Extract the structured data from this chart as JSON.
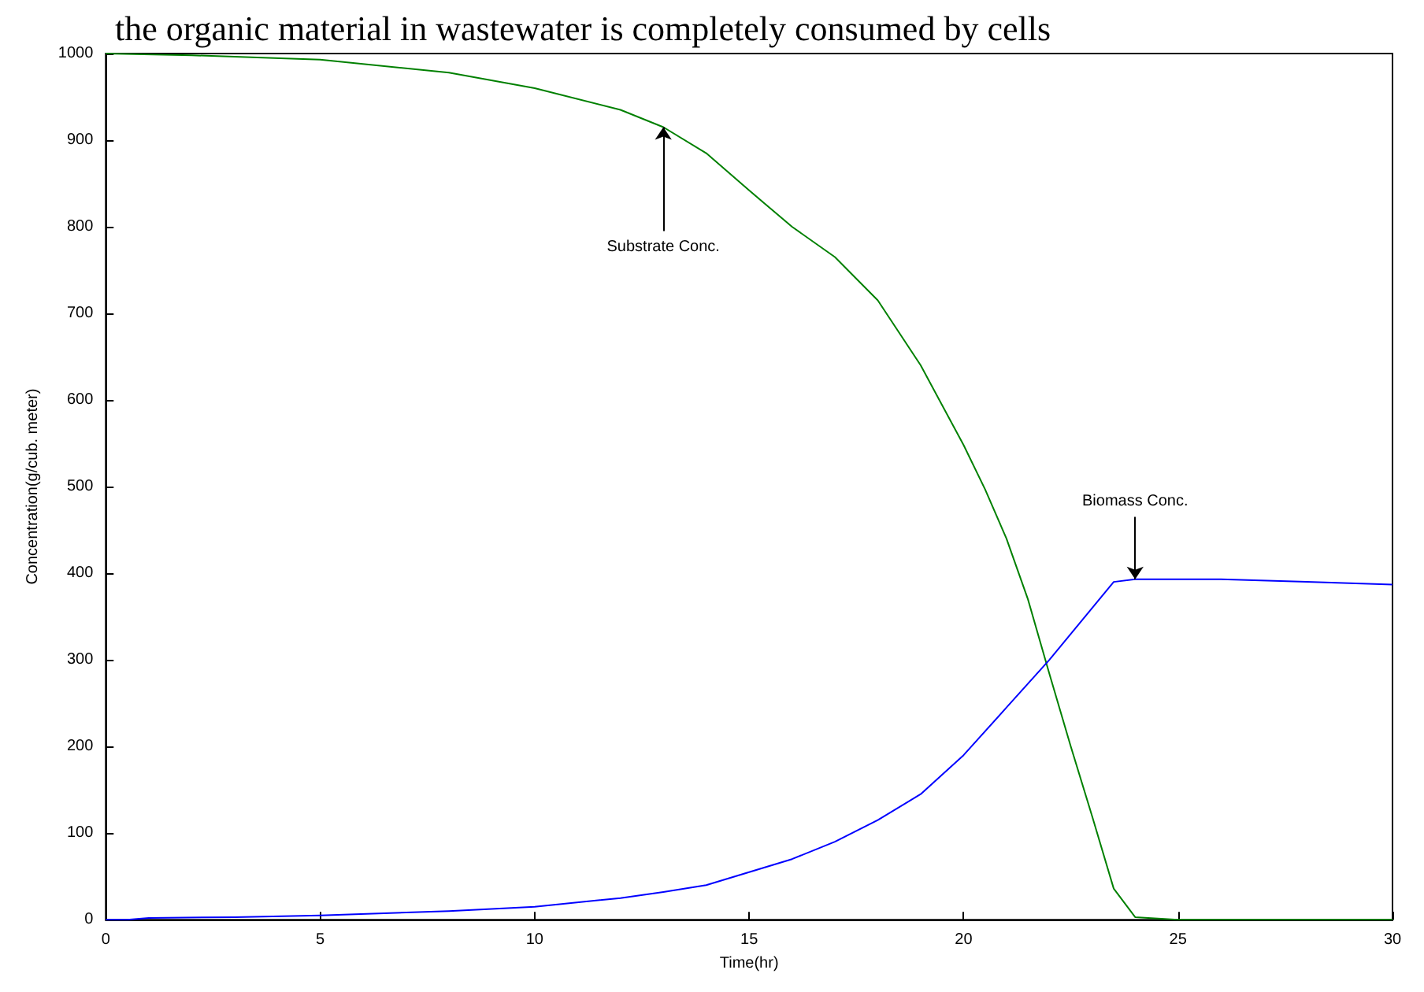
{
  "chart_data": {
    "type": "line",
    "title": "the organic material in wastewater is completely consumed by cells",
    "xlabel": "Time(hr)",
    "ylabel": "Concentration(g/cub. meter)",
    "xlim": [
      0,
      30
    ],
    "xticks": [
      0,
      5,
      10,
      15,
      20,
      25,
      30
    ],
    "ylim": [
      0,
      1000
    ],
    "yticks": [
      0,
      100,
      200,
      300,
      400,
      500,
      600,
      700,
      800,
      900,
      1000
    ],
    "series": [
      {
        "color": "#008000",
        "x": [
          0,
          2,
          5,
          8,
          10,
          12,
          13,
          14,
          15,
          16,
          17,
          18,
          19,
          20,
          20.5,
          21,
          21.5,
          22,
          22.5,
          23,
          23.5,
          24,
          25,
          30
        ],
        "values": [
          1000,
          998,
          993,
          978,
          960,
          935,
          915,
          885,
          842,
          800,
          765,
          715,
          640,
          548,
          497,
          440,
          370,
          284,
          200,
          119,
          36,
          3,
          0,
          0
        ]
      },
      {
        "color": "#0000ff",
        "x": [
          0,
          0.5,
          1,
          3,
          5,
          8,
          10,
          12,
          13,
          14,
          15,
          16,
          17,
          18,
          19,
          20,
          21,
          22,
          23,
          23.5,
          24,
          26,
          28,
          30
        ],
        "values": [
          0,
          0,
          2,
          3,
          5,
          10,
          15,
          25,
          32,
          40,
          55,
          70,
          90,
          115,
          145,
          190,
          245,
          300,
          360,
          390,
          393,
          393,
          390,
          387
        ]
      }
    ],
    "annotations": [
      {
        "text": "Substrate Conc.",
        "x": 13,
        "y": 915
      },
      {
        "text": "Biomass Conc.",
        "x": 24,
        "y": 393
      }
    ]
  }
}
